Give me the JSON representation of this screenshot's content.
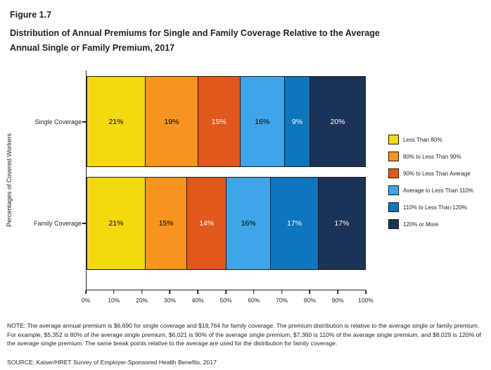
{
  "title": {
    "figure": "Figure 1.7",
    "line1": "Distribution of Annual Premiums for Single and Family Coverage Relative to the Average",
    "line2": "Annual Single or Family Premium, 2017"
  },
  "chart_data": {
    "type": "bar",
    "orientation": "horizontal",
    "stacked": true,
    "categories": [
      "Single Coverage",
      "Family Coverage"
    ],
    "series": [
      {
        "name": "Less Than 80%",
        "color": "#f5d90f",
        "label_color": "#000000",
        "values": [
          21,
          21
        ]
      },
      {
        "name": "80% to Less Than 90%",
        "color": "#f79420",
        "label_color": "#000000",
        "values": [
          19,
          15
        ]
      },
      {
        "name": "90% to Less Than Average",
        "color": "#e2571c",
        "label_color": "#ffffff",
        "values": [
          15,
          14
        ]
      },
      {
        "name": "Average to Less Than 110%",
        "color": "#3ea5e8",
        "label_color": "#000000",
        "values": [
          16,
          16
        ]
      },
      {
        "name": "110% to Less Than 120%",
        "color": "#0e76bc",
        "label_color": "#ffffff",
        "values": [
          9,
          17
        ]
      },
      {
        "name": "120% or More",
        "color": "#1a3356",
        "label_color": "#ffffff",
        "values": [
          20,
          17
        ]
      }
    ],
    "ylabel": "Percentages of Covered Workers",
    "x_ticks": [
      "0%",
      "10%",
      "20%",
      "30%",
      "40%",
      "50%",
      "60%",
      "70%",
      "80%",
      "90%",
      "100%"
    ],
    "xlim": [
      0,
      100
    ],
    "grid": false,
    "legend_position": "right"
  },
  "note": "NOTE: The average annual premium is $6,690 for single coverage and $18,764 for family coverage. The premium distribution is relative to the average single or family premium. For example, $5,352 is 80% of the average single premium, $6,021 is 90% of the average single premium, $7,360 is 110% of the average single premium, and $8,029 is 120% of the average single premium. The same break points relative to the average are used for the distribution for family coverage.",
  "source": "SOURCE: Kaiser/HRET Survey of Employer-Sponsored Health Benefits, 2017"
}
